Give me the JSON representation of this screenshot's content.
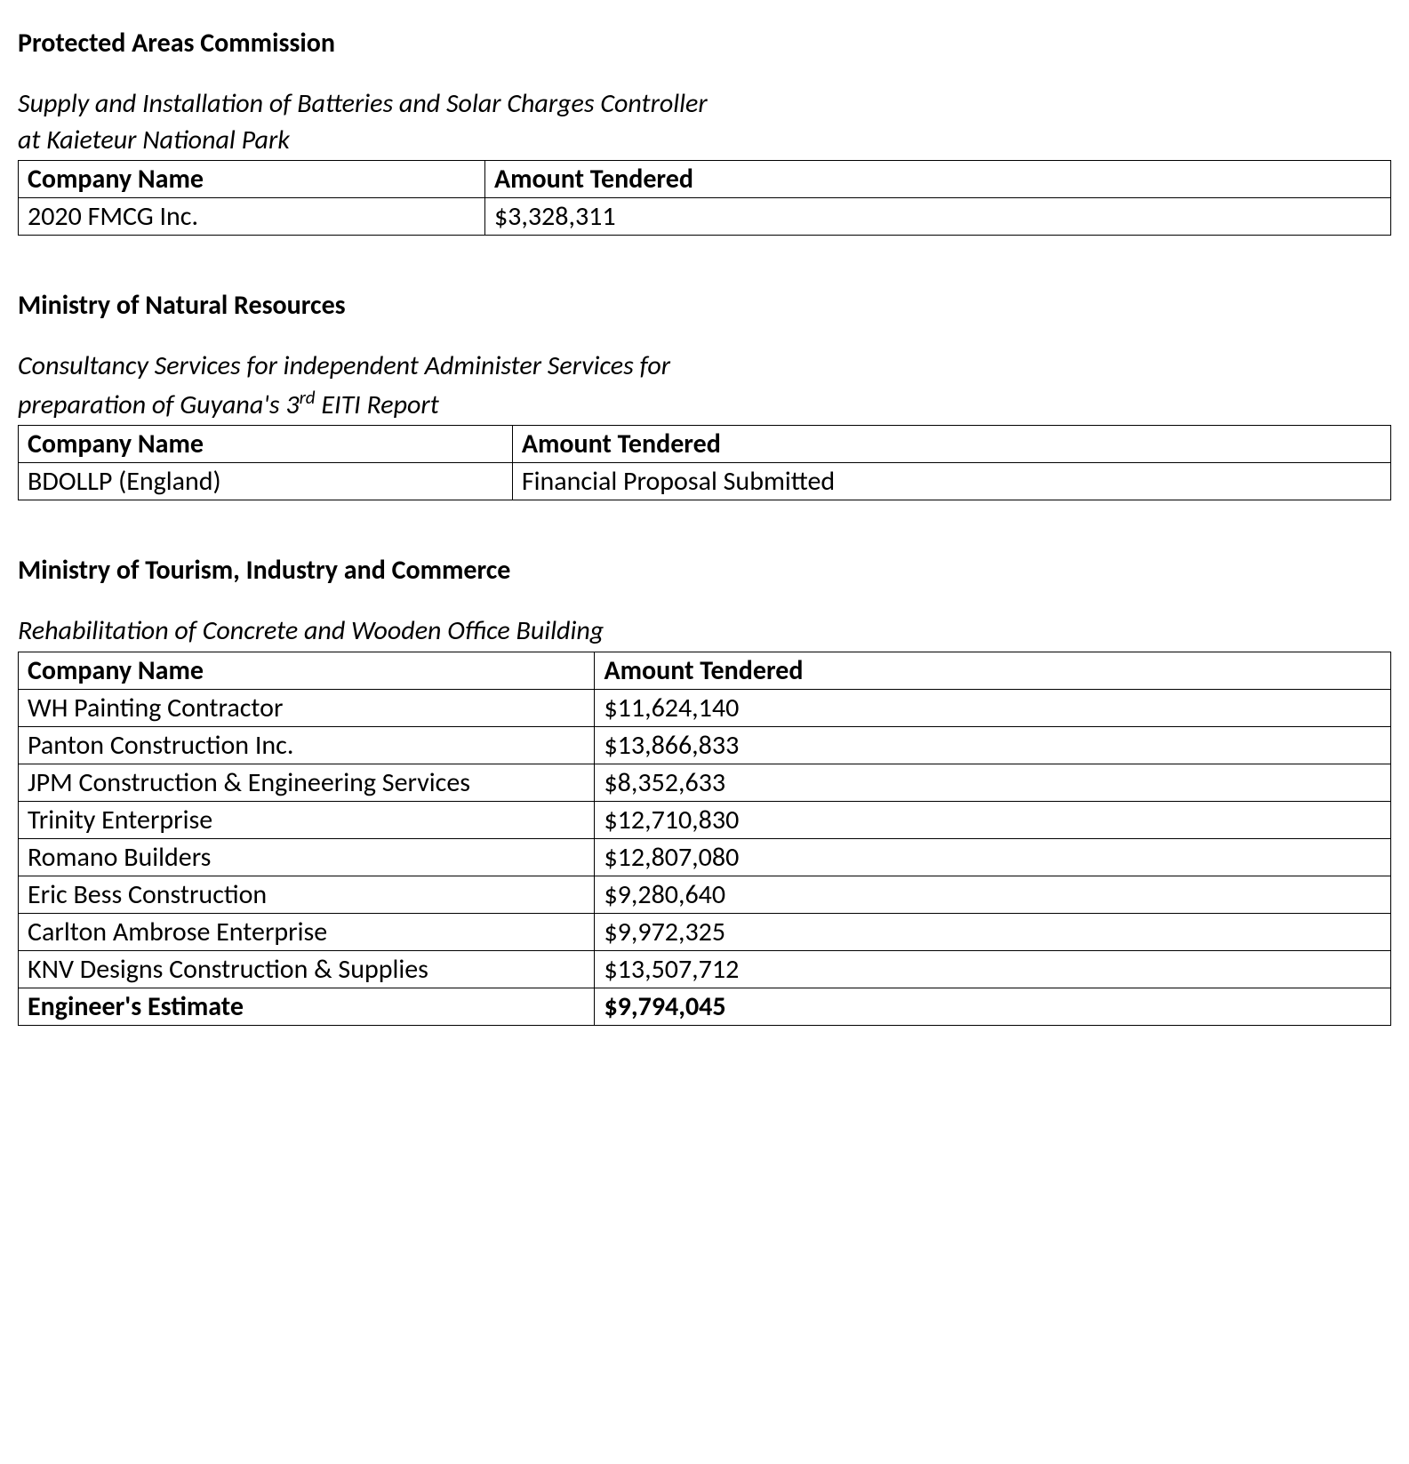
{
  "sections": [
    {
      "title": "Protected Areas Commission",
      "desc_html": "Supply and Installation of Batteries and Solar Charges Controller<br>at Kaieteur National Park",
      "col1_width": "34%",
      "headers": [
        "Company Name",
        "Amount Tendered"
      ],
      "rows": [
        {
          "cells": [
            "2020 FMCG Inc.",
            "$3,328,311"
          ],
          "bold": false
        }
      ]
    },
    {
      "title": "Ministry of Natural Resources",
      "desc_html": "Consultancy Services for independent Administer Services for<br>preparation of Guyana's 3<sup>rd</sup> EITI Report",
      "col1_width": "36%",
      "headers": [
        "Company Name",
        "Amount Tendered"
      ],
      "rows": [
        {
          "cells": [
            "BDOLLP (England)",
            "Financial Proposal Submitted"
          ],
          "bold": false
        }
      ]
    },
    {
      "title": "Ministry of Tourism, Industry and Commerce",
      "desc_html": "Rehabilitation of Concrete and Wooden Office Building",
      "col1_width": "42%",
      "headers": [
        "Company Name",
        "Amount Tendered"
      ],
      "rows": [
        {
          "cells": [
            "WH Painting Contractor",
            "$11,624,140"
          ],
          "bold": false
        },
        {
          "cells": [
            "Panton Construction Inc.",
            "$13,866,833"
          ],
          "bold": false
        },
        {
          "cells": [
            "JPM Construction & Engineering Services",
            "$8,352,633"
          ],
          "bold": false
        },
        {
          "cells": [
            "Trinity Enterprise",
            "$12,710,830"
          ],
          "bold": false
        },
        {
          "cells": [
            "Romano Builders",
            "$12,807,080"
          ],
          "bold": false
        },
        {
          "cells": [
            "Eric Bess Construction",
            "$9,280,640"
          ],
          "bold": false
        },
        {
          "cells": [
            "Carlton Ambrose Enterprise",
            "$9,972,325"
          ],
          "bold": false
        },
        {
          "cells": [
            "KNV Designs Construction & Supplies",
            "$13,507,712"
          ],
          "bold": false
        },
        {
          "cells": [
            "Engineer's Estimate",
            "$9,794,045"
          ],
          "bold": true
        }
      ]
    }
  ],
  "styles": {
    "text_color": "#000000",
    "background_color": "#ffffff",
    "border_color": "#000000",
    "base_fontsize": 30
  }
}
